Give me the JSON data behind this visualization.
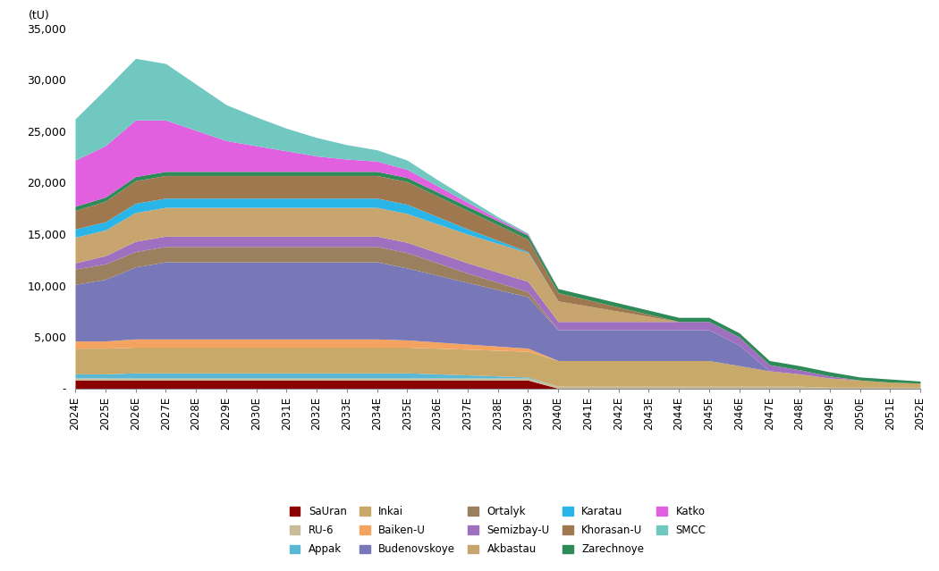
{
  "years": [
    "2024E",
    "2025E",
    "2026E",
    "2027E",
    "2028E",
    "2029E",
    "2030E",
    "2031E",
    "2032E",
    "2033E",
    "2034E",
    "2035E",
    "2036E",
    "2037E",
    "2038E",
    "2039E",
    "2040E",
    "2041E",
    "2042E",
    "2043E",
    "2044E",
    "2045E",
    "2046E",
    "2047E",
    "2048E",
    "2049E",
    "2050E",
    "2051E",
    "2052E"
  ],
  "series": [
    {
      "name": "SaUran",
      "color": "#8B0000",
      "values": [
        800,
        800,
        800,
        800,
        800,
        800,
        800,
        800,
        800,
        800,
        800,
        800,
        800,
        800,
        800,
        800,
        0,
        0,
        0,
        0,
        0,
        0,
        0,
        0,
        0,
        0,
        0,
        0,
        0
      ]
    },
    {
      "name": "RU-6",
      "color": "#C8BC9A",
      "values": [
        200,
        200,
        200,
        200,
        200,
        200,
        200,
        200,
        200,
        200,
        200,
        200,
        200,
        200,
        200,
        200,
        200,
        200,
        200,
        200,
        200,
        200,
        200,
        200,
        200,
        100,
        100,
        100,
        100
      ]
    },
    {
      "name": "Appak",
      "color": "#5BB8D4",
      "values": [
        400,
        400,
        500,
        500,
        500,
        500,
        500,
        500,
        500,
        500,
        500,
        500,
        400,
        300,
        200,
        100,
        0,
        0,
        0,
        0,
        0,
        0,
        0,
        0,
        0,
        0,
        0,
        0,
        0
      ]
    },
    {
      "name": "Inkai",
      "color": "#C8A96A",
      "values": [
        2500,
        2500,
        2500,
        2500,
        2500,
        2500,
        2500,
        2500,
        2500,
        2500,
        2500,
        2500,
        2500,
        2500,
        2500,
        2500,
        2500,
        2500,
        2500,
        2500,
        2500,
        2500,
        2000,
        1500,
        1200,
        900,
        700,
        500,
        400
      ]
    },
    {
      "name": "Baiken-U",
      "color": "#F4A460",
      "values": [
        700,
        700,
        800,
        800,
        800,
        800,
        800,
        800,
        800,
        800,
        800,
        700,
        600,
        500,
        400,
        300,
        0,
        0,
        0,
        0,
        0,
        0,
        0,
        0,
        0,
        0,
        0,
        0,
        0
      ]
    },
    {
      "name": "Budenovskoye",
      "color": "#7878B8",
      "values": [
        5500,
        6000,
        7000,
        7500,
        7500,
        7500,
        7500,
        7500,
        7500,
        7500,
        7500,
        7000,
        6500,
        6000,
        5500,
        5000,
        3000,
        3000,
        3000,
        3000,
        3000,
        3000,
        2000,
        0,
        0,
        0,
        0,
        0,
        0
      ]
    },
    {
      "name": "Ortalyk",
      "color": "#9B8060",
      "values": [
        1500,
        1500,
        1500,
        1500,
        1500,
        1500,
        1500,
        1500,
        1500,
        1500,
        1500,
        1500,
        1200,
        900,
        700,
        500,
        0,
        0,
        0,
        0,
        0,
        0,
        0,
        0,
        0,
        0,
        0,
        0,
        0
      ]
    },
    {
      "name": "Semizbay-U",
      "color": "#A070C0",
      "values": [
        600,
        800,
        1000,
        1000,
        1000,
        1000,
        1000,
        1000,
        1000,
        1000,
        1000,
        1000,
        1000,
        1000,
        1000,
        1000,
        800,
        800,
        800,
        800,
        800,
        800,
        800,
        600,
        400,
        200,
        0,
        0,
        0
      ]
    },
    {
      "name": "Akbastau",
      "color": "#C8A46E",
      "values": [
        2500,
        2500,
        2800,
        2800,
        2800,
        2800,
        2800,
        2800,
        2800,
        2800,
        2800,
        2800,
        2800,
        2800,
        2800,
        2800,
        2000,
        1500,
        1000,
        500,
        0,
        0,
        0,
        0,
        0,
        0,
        0,
        0,
        0
      ]
    },
    {
      "name": "Karatau",
      "color": "#29B5E8",
      "values": [
        800,
        800,
        900,
        900,
        900,
        900,
        900,
        900,
        900,
        900,
        900,
        900,
        700,
        500,
        300,
        100,
        0,
        0,
        0,
        0,
        0,
        0,
        0,
        0,
        0,
        0,
        0,
        0,
        0
      ]
    },
    {
      "name": "Khorasan-U",
      "color": "#A07850",
      "values": [
        1800,
        2000,
        2200,
        2200,
        2200,
        2200,
        2200,
        2200,
        2200,
        2200,
        2200,
        2200,
        2000,
        1800,
        1500,
        1200,
        800,
        600,
        400,
        200,
        0,
        0,
        0,
        0,
        0,
        0,
        0,
        0,
        0
      ]
    },
    {
      "name": "Zarechnoye",
      "color": "#2E8B57",
      "values": [
        400,
        400,
        400,
        400,
        400,
        400,
        400,
        400,
        400,
        400,
        400,
        400,
        400,
        400,
        400,
        400,
        400,
        400,
        400,
        400,
        400,
        400,
        400,
        400,
        400,
        400,
        300,
        300,
        200
      ]
    },
    {
      "name": "Katko",
      "color": "#E060E0",
      "values": [
        4500,
        5000,
        5500,
        5000,
        4000,
        3000,
        2500,
        2000,
        1500,
        1200,
        1000,
        800,
        600,
        400,
        200,
        100,
        0,
        0,
        0,
        0,
        0,
        0,
        0,
        0,
        0,
        0,
        0,
        0,
        0
      ]
    },
    {
      "name": "SMCC",
      "color": "#70C8C0",
      "values": [
        4000,
        5500,
        6000,
        5500,
        4500,
        3500,
        2800,
        2200,
        1800,
        1400,
        1100,
        900,
        600,
        400,
        200,
        100,
        0,
        0,
        0,
        0,
        0,
        0,
        0,
        0,
        0,
        0,
        0,
        0,
        0
      ]
    }
  ],
  "ylabel": "(tU)",
  "ylim": [
    0,
    35000
  ],
  "yticks": [
    0,
    5000,
    10000,
    15000,
    20000,
    25000,
    30000,
    35000
  ],
  "ytick_labels": [
    "-",
    "5,000",
    "10,000",
    "15,000",
    "20,000",
    "25,000",
    "30,000",
    "35,000"
  ]
}
